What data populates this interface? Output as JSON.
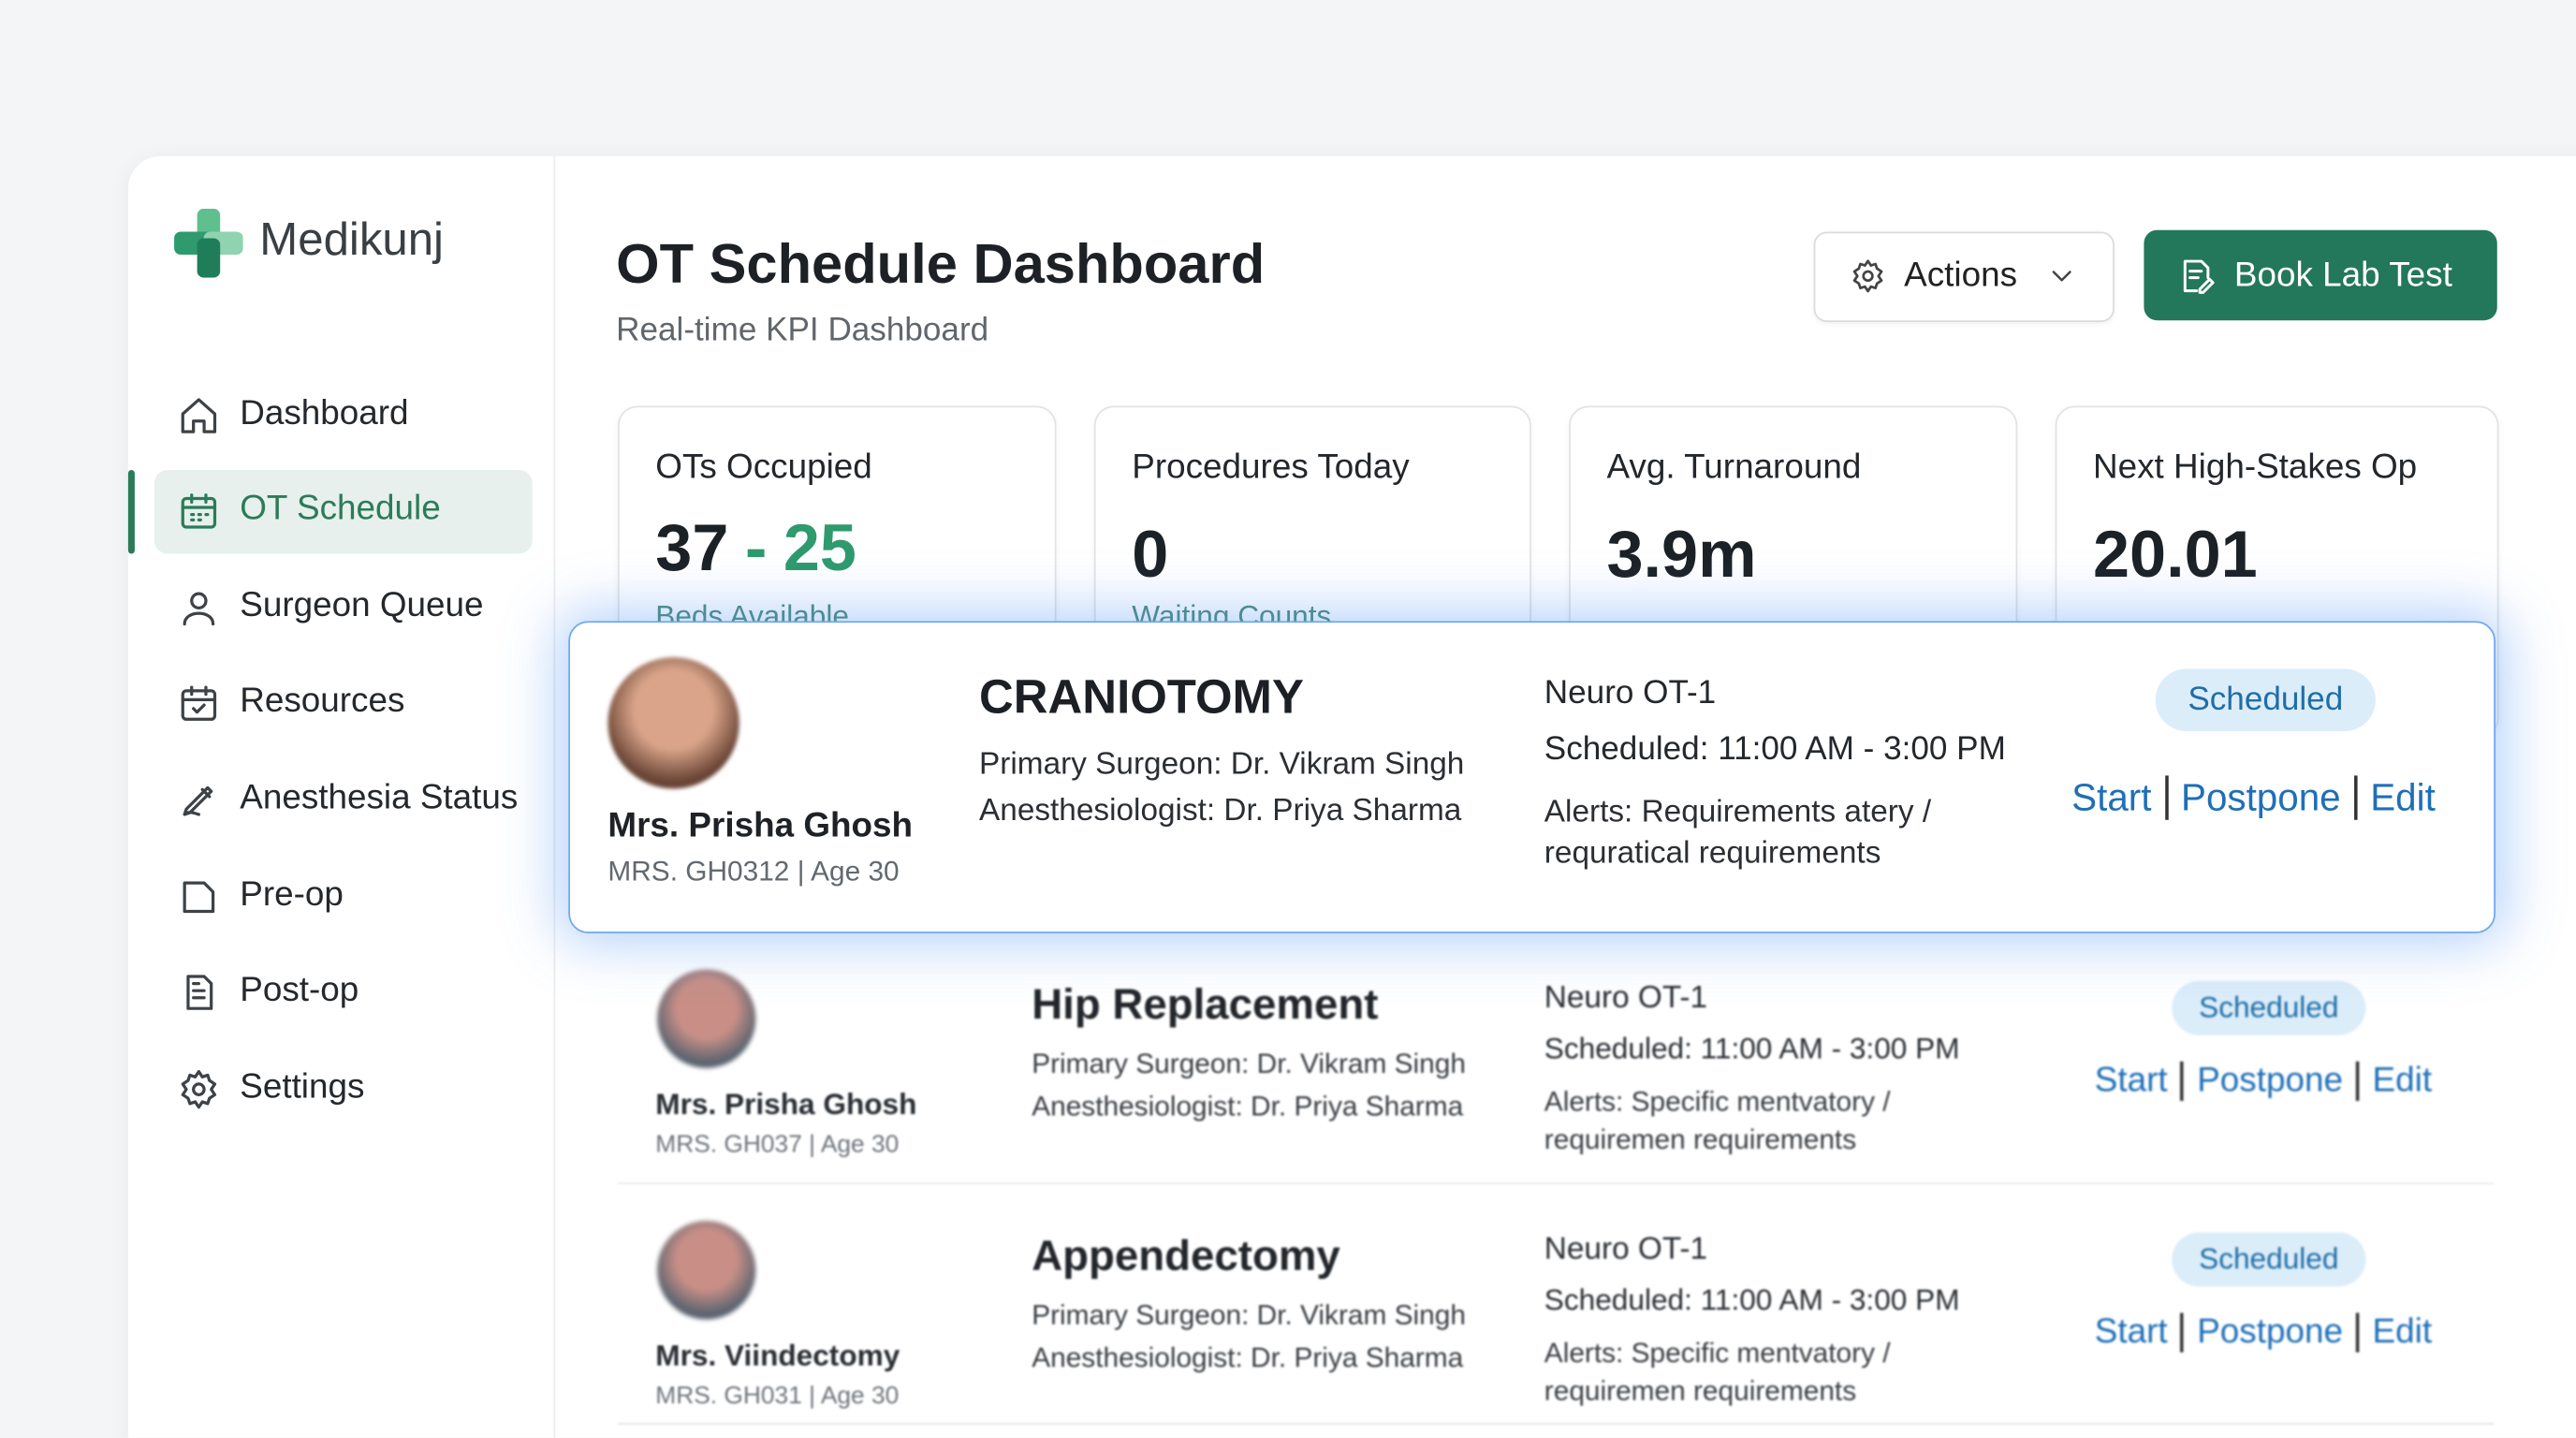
{
  "brand": "Medikunj",
  "nav": [
    "Dashboard",
    "OT Schedule",
    "Surgeon Queue",
    "Resources",
    "Anesthesia Status",
    "Pre-op",
    "Post-op",
    "Settings"
  ],
  "header": {
    "title": "OT Schedule Dashboard",
    "subtitle": "Real-time KPI Dashboard",
    "actions_button": "Actions",
    "primary_button": "Book Lab Test"
  },
  "kpis": [
    {
      "label": "OTs Occupied",
      "value": "37",
      "separator": "-",
      "value_secondary": "25",
      "sub": "Beds Available"
    },
    {
      "label": "Procedures Today",
      "value": "0",
      "sub": "Waiting Counts"
    },
    {
      "label": "Avg. Turnaround",
      "value": "3.9m"
    },
    {
      "label": "Next High-Stakes Op",
      "value": "20.01"
    }
  ],
  "schedule": [
    {
      "patient": "Mrs. Prisha Ghosh",
      "patient_id": "MRS. GH0312 | Age 30",
      "procedure": "CRANIOTOMY",
      "surgeon": "Primary Surgeon: Dr. Vikram Singh",
      "anesthesiologist": "Anesthesiologist: Dr. Priya Sharma",
      "location": "Neuro OT-1",
      "time": "Scheduled: 11:00 AM - 3:00 PM",
      "alerts": "Alerts: Requirements atery / requratical requirements",
      "status": "Scheduled",
      "actions": [
        "Start",
        "Postpone",
        "Edit"
      ]
    },
    {
      "patient": "Mrs. Prisha Ghosh",
      "patient_id": "MRS. GH037 | Age 30",
      "procedure": "Hip Replacement",
      "surgeon": "Primary Surgeon: Dr. Vikram Singh",
      "anesthesiologist": "Anesthesiologist: Dr. Priya Sharma",
      "location": "Neuro OT-1",
      "time": "Scheduled: 11:00 AM - 3:00 PM",
      "alerts": "Alerts: Specific mentvatory / requiremen requirements",
      "status": "Scheduled",
      "actions": [
        "Start",
        "Postpone",
        "Edit"
      ]
    },
    {
      "patient": "Mrs. Viindectomy",
      "patient_id": "MRS. GH031 | Age 30",
      "procedure": "Appendectomy",
      "surgeon": "Primary Surgeon: Dr. Vikram Singh",
      "anesthesiologist": "Anesthesiologist: Dr. Priya Sharma",
      "location": "Neuro OT-1",
      "time": "Scheduled: 11:00 AM - 3:00 PM",
      "alerts": "Alerts: Specific mentvatory / requiremen requirements",
      "status": "Scheduled",
      "actions": [
        "Start",
        "Postpone",
        "Edit"
      ]
    }
  ]
}
